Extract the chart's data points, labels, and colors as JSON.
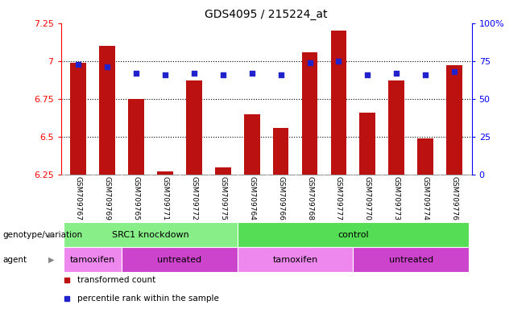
{
  "title": "GDS4095 / 215224_at",
  "samples": [
    "GSM709767",
    "GSM709769",
    "GSM709765",
    "GSM709771",
    "GSM709772",
    "GSM709775",
    "GSM709764",
    "GSM709766",
    "GSM709768",
    "GSM709777",
    "GSM709770",
    "GSM709773",
    "GSM709774",
    "GSM709776"
  ],
  "bar_values": [
    6.99,
    7.1,
    6.75,
    6.27,
    6.87,
    6.3,
    6.65,
    6.56,
    7.06,
    7.2,
    6.66,
    6.87,
    6.49,
    6.97
  ],
  "dot_values": [
    73,
    71,
    67,
    66,
    67,
    66,
    67,
    66,
    74,
    75,
    66,
    67,
    66,
    68
  ],
  "ylim": [
    6.25,
    7.25
  ],
  "yticks": [
    6.25,
    6.5,
    6.75,
    7.0,
    7.25
  ],
  "ytick_labels": [
    "6.25",
    "6.5",
    "6.75",
    "7",
    "7.25"
  ],
  "right_yticks": [
    0,
    25,
    50,
    75,
    100
  ],
  "right_ytick_labels": [
    "0",
    "25",
    "50",
    "75",
    "100%"
  ],
  "bar_color": "#bb1111",
  "dot_color": "#2222cc",
  "background_color": "#ffffff",
  "plot_bg_color": "#ffffff",
  "title_fontsize": 10,
  "genotype_label": "genotype/variation",
  "agent_label": "agent",
  "genotype_groups": [
    {
      "label": "SRC1 knockdown",
      "start": 0,
      "end": 6,
      "color": "#88ee88"
    },
    {
      "label": "control",
      "start": 6,
      "end": 14,
      "color": "#55dd55"
    }
  ],
  "agent_groups": [
    {
      "label": "tamoxifen",
      "start": 0,
      "end": 2,
      "color": "#ee88ee"
    },
    {
      "label": "untreated",
      "start": 2,
      "end": 6,
      "color": "#cc44cc"
    },
    {
      "label": "tamoxifen",
      "start": 6,
      "end": 10,
      "color": "#ee88ee"
    },
    {
      "label": "untreated",
      "start": 10,
      "end": 14,
      "color": "#cc44cc"
    }
  ],
  "legend_items": [
    {
      "label": "transformed count",
      "color": "#bb1111"
    },
    {
      "label": "percentile rank within the sample",
      "color": "#2222cc"
    }
  ]
}
